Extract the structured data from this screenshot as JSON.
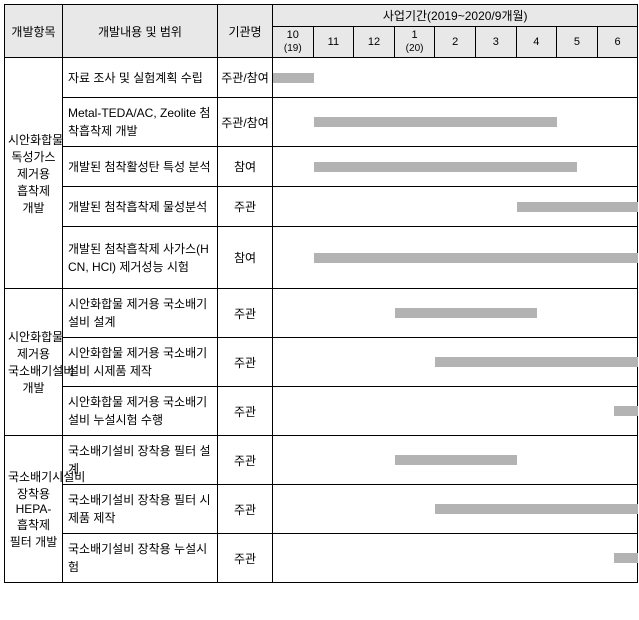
{
  "header": {
    "dev_item": "개발항목",
    "content_scope": "개발내용 및 범위",
    "org": "기관명",
    "period_title": "사업기간(2019~2020/9개월)",
    "months": [
      "10\n(19)",
      "11",
      "12",
      "1\n(20)",
      "2",
      "3",
      "4",
      "5",
      "6"
    ]
  },
  "month_width": 40.6,
  "groups": [
    {
      "name": "시안화합물 독성가스 제거용 흡착제 개발",
      "rows": [
        {
          "content": "자료 조사 및 실험계획 수립",
          "org": "주관/참여",
          "start": 0,
          "end": 1,
          "tall": false
        },
        {
          "content": "Metal-TEDA/AC, Zeolite 첨착흡착제 개발",
          "org": "주관/참여",
          "start": 1,
          "end": 7,
          "tall": false
        },
        {
          "content": "개발된 첨착활성탄 특성 분석",
          "org": "참여",
          "start": 1,
          "end": 7.5,
          "tall": false
        },
        {
          "content": "개발된 첨착흡착제 물성분석",
          "org": "주관",
          "start": 6,
          "end": 9,
          "tall": false
        },
        {
          "content": "개발된 첨착흡착제 사가스(HCN, HCl) 제거성능 시험",
          "org": "참여",
          "start": 1,
          "end": 9,
          "tall": true
        }
      ]
    },
    {
      "name": "시안화합물 제거용 국소배기설비 개발",
      "rows": [
        {
          "content": "시안화합물 제거용 국소배기설비 설계",
          "org": "주관",
          "start": 3,
          "end": 6.5,
          "tall": false
        },
        {
          "content": "시안화합물 제거용 국소배기설비 시제품 제작",
          "org": "주관",
          "start": 4,
          "end": 9,
          "tall": false
        },
        {
          "content": "시안화합물 제거용 국소배기설비 누설시험 수행",
          "org": "주관",
          "start": 8.4,
          "end": 9,
          "tall": false
        }
      ]
    },
    {
      "name": "국소배기시설비 장착용 HEPA-흡착제 필터 개발",
      "rows": [
        {
          "content": "국소배기설비 장착용 필터 설계",
          "org": "주관",
          "start": 3,
          "end": 6,
          "tall": false
        },
        {
          "content": "국소배기설비 장착용 필터 시제품 제작",
          "org": "주관",
          "start": 4,
          "end": 9,
          "tall": false
        },
        {
          "content": "국소배기설비 장착용 누설시험",
          "org": "주관",
          "start": 8.4,
          "end": 9,
          "tall": false
        }
      ]
    }
  ],
  "bar_color": "#b3b3b3"
}
